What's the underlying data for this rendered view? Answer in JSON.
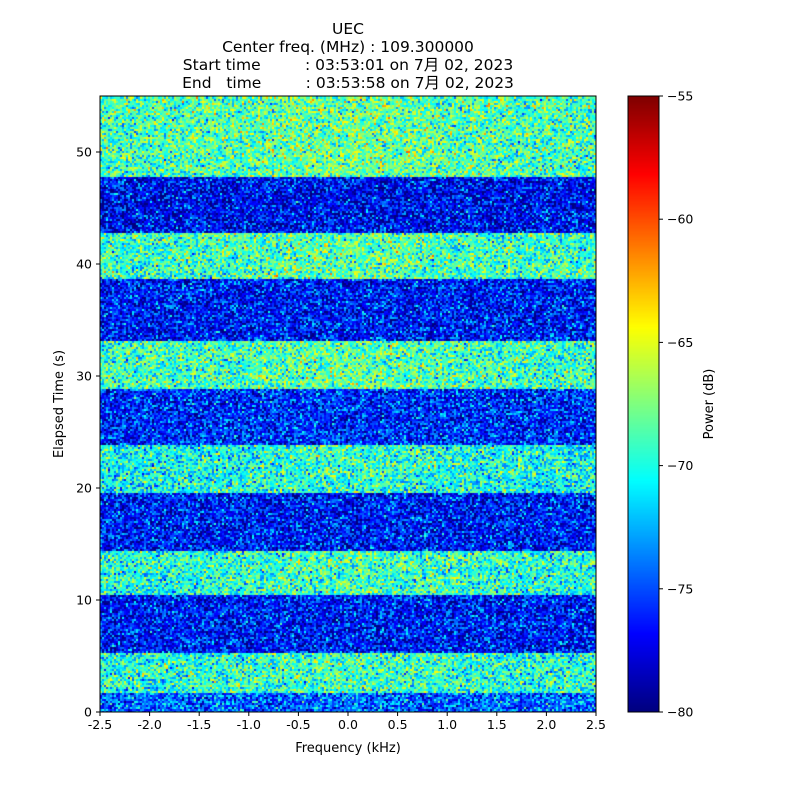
{
  "chart_data": {
    "type": "heatmap",
    "title_lines": [
      "UEC",
      "Center freq. (MHz) : 109.300000",
      "Start time         : 03:53:01 on 7月 02, 2023",
      "End   time         : 03:53:58 on 7月 02, 2023"
    ],
    "xlabel": "Frequency (kHz)",
    "ylabel": "Elapsed Time (s)",
    "xlim": [
      -2.5,
      2.5
    ],
    "ylim": [
      0,
      55
    ],
    "xticks": [
      -2.5,
      -2.0,
      -1.5,
      -1.0,
      -0.5,
      0.0,
      0.5,
      1.0,
      1.5,
      2.0,
      2.5
    ],
    "xtick_labels": [
      "-2.5",
      "-2.0",
      "-1.5",
      "-1.0",
      "-0.5",
      "0.0",
      "0.5",
      "1.0",
      "1.5",
      "2.0",
      "2.5"
    ],
    "yticks": [
      0,
      10,
      20,
      30,
      40,
      50
    ],
    "ytick_labels": [
      "0",
      "10",
      "20",
      "30",
      "40",
      "50"
    ],
    "colormap": "jet",
    "colorbar": {
      "label": "Power (dB)",
      "range": [
        -80,
        -55
      ],
      "ticks": [
        -80,
        -75,
        -70,
        -65,
        -60,
        -55
      ],
      "tick_labels": [
        "−80",
        "−75",
        "−70",
        "−65",
        "−60",
        "−55"
      ]
    },
    "grid": false,
    "freq_bins": 248,
    "time_bins": 308,
    "noise_floor_db": -76.5,
    "bands": [
      {
        "t_start": 0.0,
        "t_end": 1.8,
        "level": "weak",
        "mean_db": -74.5
      },
      {
        "t_start": 1.8,
        "t_end": 5.3,
        "level": "strong",
        "mean_db": -70.0
      },
      {
        "t_start": 5.3,
        "t_end": 10.5,
        "level": "weak",
        "mean_db": -76.5
      },
      {
        "t_start": 10.5,
        "t_end": 14.5,
        "level": "strong",
        "mean_db": -70.0
      },
      {
        "t_start": 14.5,
        "t_end": 19.7,
        "level": "weak",
        "mean_db": -76.5
      },
      {
        "t_start": 19.7,
        "t_end": 24.0,
        "level": "strong",
        "mean_db": -70.5
      },
      {
        "t_start": 24.0,
        "t_end": 28.9,
        "level": "weak",
        "mean_db": -76.0
      },
      {
        "t_start": 28.9,
        "t_end": 33.3,
        "level": "strong",
        "mean_db": -69.5
      },
      {
        "t_start": 33.3,
        "t_end": 38.7,
        "level": "weak",
        "mean_db": -76.5
      },
      {
        "t_start": 38.7,
        "t_end": 42.8,
        "level": "strong",
        "mean_db": -69.5
      },
      {
        "t_start": 42.8,
        "t_end": 47.9,
        "level": "weak",
        "mean_db": -77.0
      },
      {
        "t_start": 47.9,
        "t_end": 55.0,
        "level": "strong",
        "mean_db": -69.0
      }
    ]
  }
}
